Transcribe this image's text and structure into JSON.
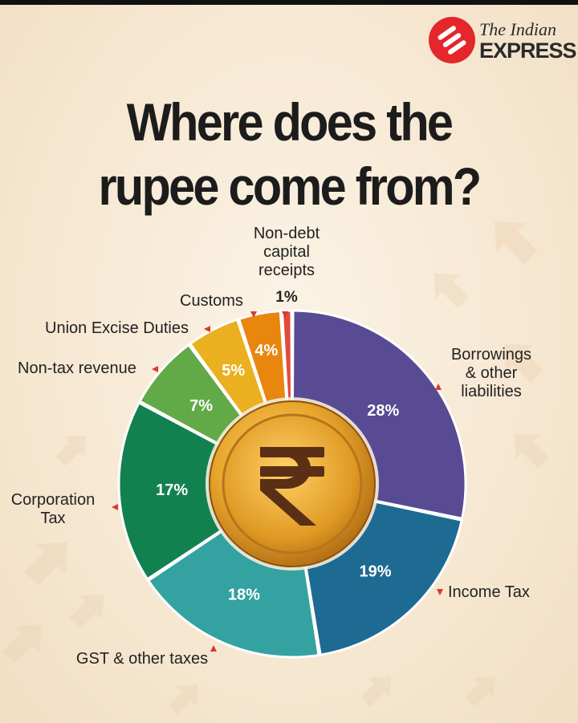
{
  "brand": {
    "line1": "The Indian",
    "line2": "EXPRESS"
  },
  "title": {
    "line1": "Where does the",
    "line2": "rupee come from?"
  },
  "chart_data": {
    "type": "pie",
    "title": "Where does the rupee come from?",
    "unit": "%",
    "slices": [
      {
        "label": [
          "Borrowings",
          "& other",
          "liabilities"
        ],
        "value": 28,
        "text": "28%",
        "color": "#584a93"
      },
      {
        "label": [
          "Income Tax"
        ],
        "value": 19,
        "text": "19%",
        "color": "#1d6a93"
      },
      {
        "label": [
          "GST & other taxes"
        ],
        "value": 18,
        "text": "18%",
        "color": "#33a2a1"
      },
      {
        "label": [
          "Corporation",
          "Tax"
        ],
        "value": 17,
        "text": "17%",
        "color": "#128150"
      },
      {
        "label": [
          "Non-tax revenue"
        ],
        "value": 7,
        "text": "7%",
        "color": "#62a948"
      },
      {
        "label": [
          "Union Excise Duties"
        ],
        "value": 5,
        "text": "5%",
        "color": "#eab01f"
      },
      {
        "label": [
          "Customs"
        ],
        "value": 4,
        "text": "4%",
        "color": "#e8860e"
      },
      {
        "label": [
          "Non-debt",
          "capital",
          "receipts"
        ],
        "value": 1,
        "text": "1%",
        "color": "#e24b3a"
      }
    ]
  },
  "colors": {
    "background": "#f7ead6",
    "arrow": "#d63a2f",
    "coin": "#e0a22e",
    "rupee": "#5a2f15"
  },
  "icons": {
    "brand": "indian-express-logo",
    "center": "rupee-coin-icon"
  }
}
